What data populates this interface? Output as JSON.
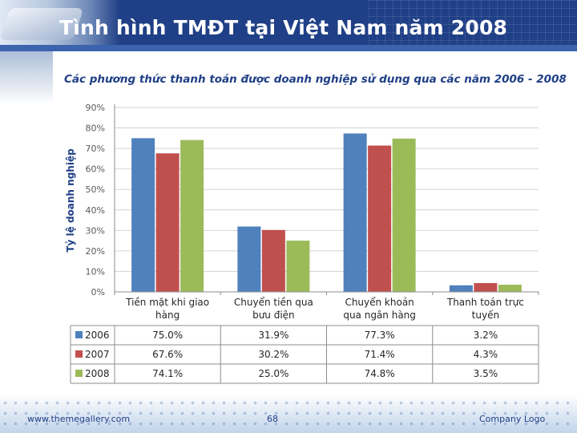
{
  "slide": {
    "title": "Tình hình TMĐT tại Việt Nam năm 2008",
    "footer_left": "www.themegallery.com",
    "page_number": "68",
    "footer_right": "Company Logo"
  },
  "colors": {
    "header": "#1f3f86",
    "series_2006": "#4f81bd",
    "series_2007": "#c0504d",
    "series_2008": "#9bbb59"
  },
  "chart_data": {
    "type": "bar",
    "title": "Các phương thức thanh toán được doanh nghiệp sử dụng qua các năm 2006 - 2008",
    "ylabel": "Tỷ lệ doanh nghiệp",
    "xlabel": "",
    "ylim": [
      0,
      90
    ],
    "yticks": [
      "0%",
      "10%",
      "20%",
      "30%",
      "40%",
      "50%",
      "60%",
      "70%",
      "80%",
      "90%"
    ],
    "grid": true,
    "categories": [
      [
        "Tiền mặt khi giao",
        "hàng"
      ],
      [
        "Chuyển tiền qua",
        "bưu điện"
      ],
      [
        "Chuyển khoản",
        "qua ngân hàng"
      ],
      [
        "Thanh toán trực",
        "tuyến"
      ]
    ],
    "series": [
      {
        "name": "2006",
        "color": "#4f81bd",
        "values": [
          75.0,
          31.9,
          77.3,
          3.2
        ],
        "labels": [
          "75.0%",
          "31.9%",
          "77.3%",
          "3.2%"
        ]
      },
      {
        "name": "2007",
        "color": "#c0504d",
        "values": [
          67.6,
          30.2,
          71.4,
          4.3
        ],
        "labels": [
          "67.6%",
          "30.2%",
          "71.4%",
          "4.3%"
        ]
      },
      {
        "name": "2008",
        "color": "#9bbb59",
        "values": [
          74.1,
          25.0,
          74.8,
          3.5
        ],
        "labels": [
          "74.1%",
          "25.0%",
          "74.8%",
          "3.5%"
        ]
      }
    ]
  }
}
